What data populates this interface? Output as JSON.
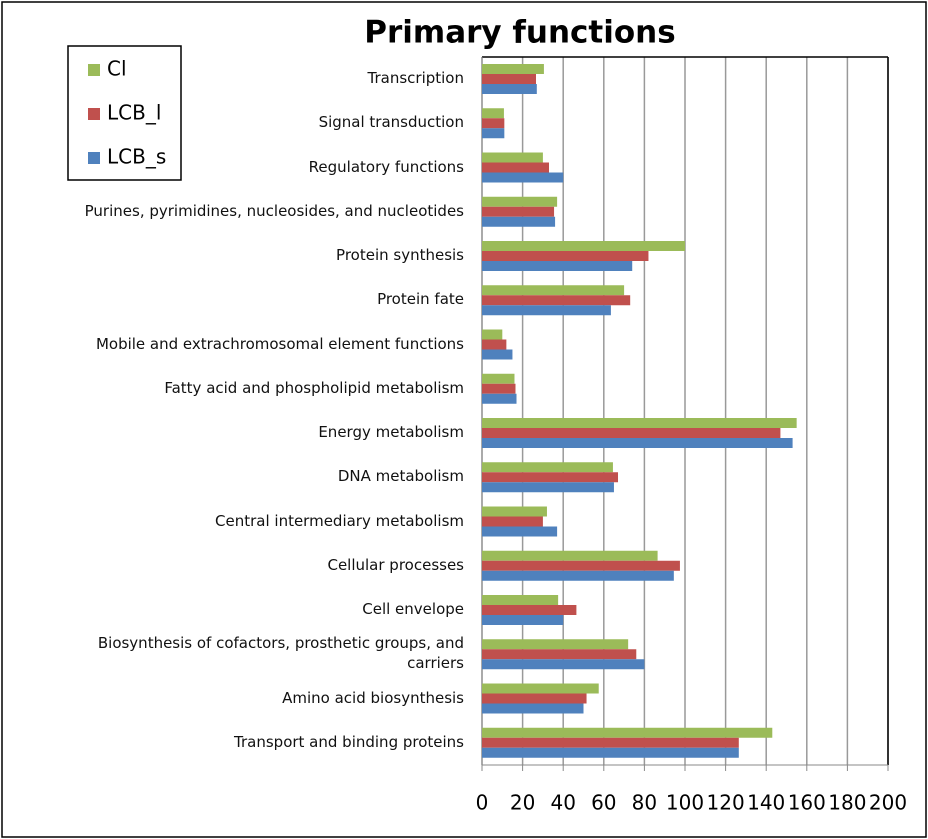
{
  "chart_data": {
    "type": "hbar",
    "title": "Primary functions",
    "categories": [
      "Transcription",
      "Signal transduction",
      "Regulatory functions",
      "Purines, pyrimidines, nucleosides, and nucleotides",
      "Protein synthesis",
      "Protein fate",
      "Mobile and extrachromosomal element functions",
      "Fatty acid and phospholipid metabolism",
      "Energy metabolism",
      "DNA metabolism",
      "Central intermediary metabolism",
      "Cellular processes",
      "Cell envelope",
      "Biosynthesis of cofactors, prosthetic groups, and carriers",
      "Amino acid biosynthesis",
      "Transport and binding proteins"
    ],
    "series": [
      {
        "name": "Cl",
        "color": "#9bbb59",
        "values": [
          30.5,
          10.8,
          30,
          37,
          100,
          70,
          10,
          16,
          155,
          64.5,
          32,
          86.5,
          37.5,
          72,
          57.5,
          143
        ]
      },
      {
        "name": "LCB_l",
        "color": "#c0504d",
        "values": [
          26.6,
          11,
          33,
          35.5,
          82,
          73,
          12,
          16.5,
          147,
          67,
          30,
          97.5,
          46.5,
          76,
          51.5,
          126.5
        ]
      },
      {
        "name": "LCB_s",
        "color": "#4f81bd",
        "values": [
          27,
          11,
          40,
          36,
          74,
          63.5,
          15,
          17,
          153,
          65,
          37,
          94.5,
          40,
          80,
          50,
          126.5
        ]
      }
    ],
    "xlim": [
      0,
      200
    ],
    "xticks": [
      0,
      20,
      40,
      60,
      80,
      100,
      120,
      140,
      160,
      180,
      200
    ],
    "grid": true,
    "legend": "top-left"
  }
}
